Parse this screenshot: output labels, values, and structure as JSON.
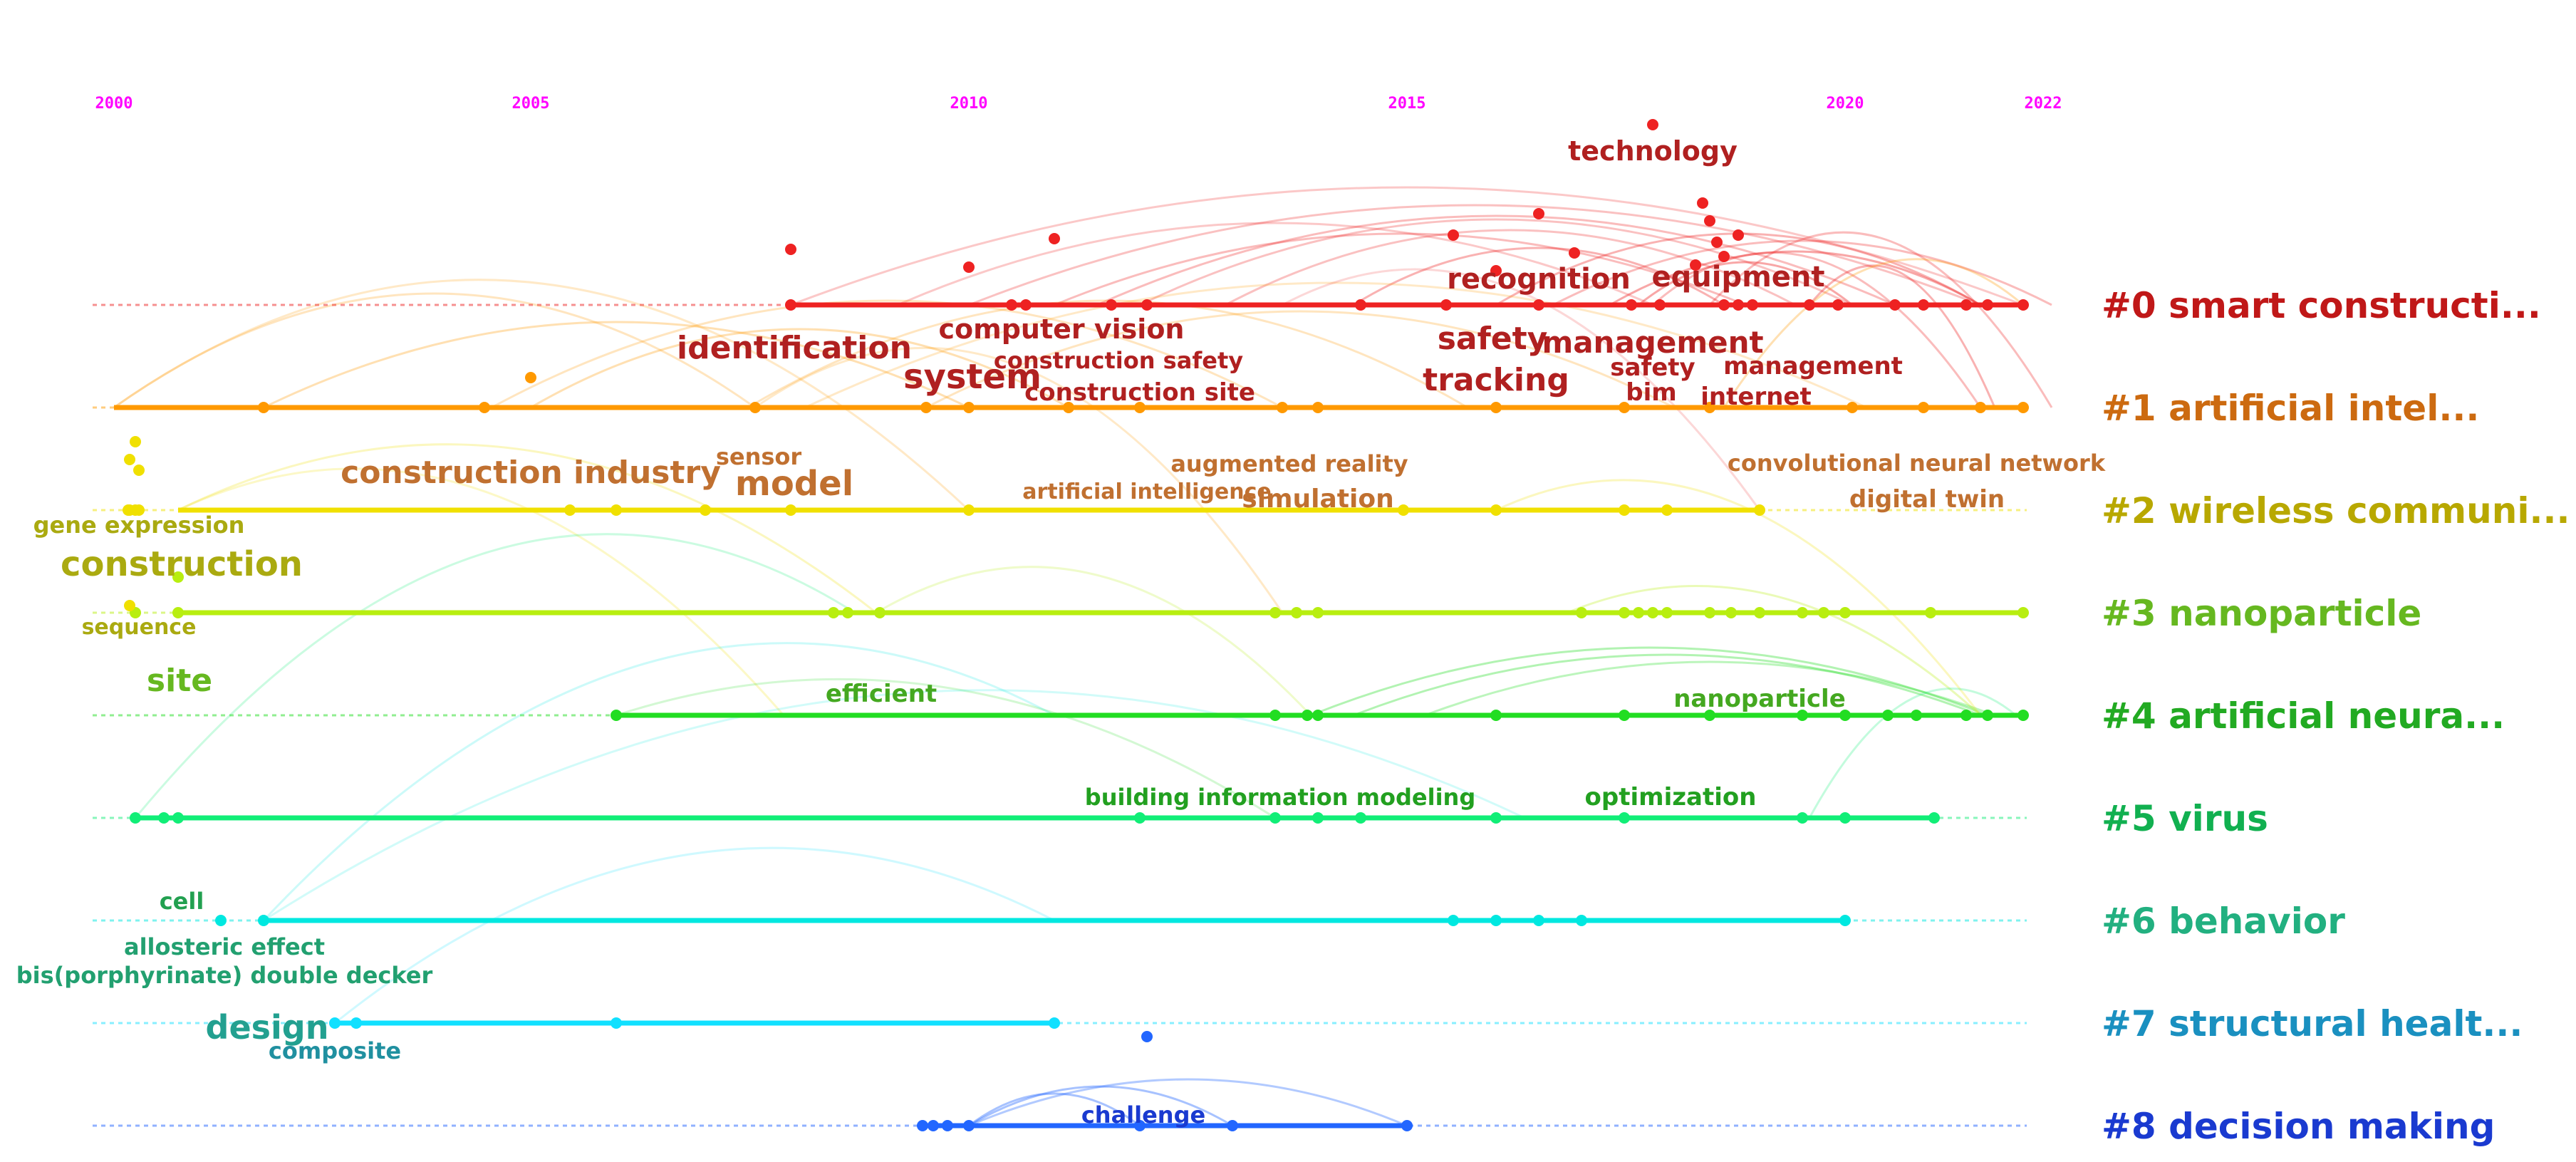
{
  "years": [
    "2000",
    "2005",
    "2010",
    "2015",
    "2020",
    "2022"
  ],
  "clusters": [
    {
      "label": "#0 smart constructi...",
      "color": "#ee2222",
      "text": "#c01818"
    },
    {
      "label": "#1 artificial intel...",
      "color": "#ff9900",
      "text": "#cc6a10"
    },
    {
      "label": "#2 wireless communi...",
      "color": "#f0e000",
      "text": "#b8a800"
    },
    {
      "label": "#3 nanoparticle",
      "color": "#b8ee10",
      "text": "#66b820"
    },
    {
      "label": "#4 artificial neura...",
      "color": "#22dd22",
      "text": "#22aa22"
    },
    {
      "label": "#5 virus",
      "color": "#11ee77",
      "text": "#11b050"
    },
    {
      "label": "#6 behavior",
      "color": "#00e8e0",
      "text": "#22b080"
    },
    {
      "label": "#7 structural healt...",
      "color": "#11e0ff",
      "text": "#1a90c0"
    },
    {
      "label": "#8 decision making",
      "color": "#2266ff",
      "text": "#1a3ad0"
    }
  ],
  "keywords": [
    {
      "text": "technology",
      "size": 38,
      "color": "#b02020"
    },
    {
      "text": "recognition",
      "size": 40,
      "color": "#b02020"
    },
    {
      "text": "equipment",
      "size": 40,
      "color": "#b02020"
    },
    {
      "text": "computer vision",
      "size": 38,
      "color": "#b02020"
    },
    {
      "text": "identification",
      "size": 44,
      "color": "#b02020"
    },
    {
      "text": "construction safety",
      "size": 32,
      "color": "#b02020"
    },
    {
      "text": "system",
      "size": 48,
      "color": "#b02020"
    },
    {
      "text": "construction site",
      "size": 34,
      "color": "#b02020"
    },
    {
      "text": "safety",
      "size": 44,
      "color": "#b02020"
    },
    {
      "text": "tracking",
      "size": 44,
      "color": "#b02020"
    },
    {
      "text": "management",
      "size": 42,
      "color": "#b02020"
    },
    {
      "text": "safety",
      "size": 34,
      "color": "#b02020"
    },
    {
      "text": "management",
      "size": 34,
      "color": "#b02020"
    },
    {
      "text": "bim",
      "size": 34,
      "color": "#b02020"
    },
    {
      "text": "internet",
      "size": 34,
      "color": "#b02020"
    },
    {
      "text": "sensor",
      "size": 32,
      "color": "#c07030"
    },
    {
      "text": "construction industry",
      "size": 44,
      "color": "#c07030"
    },
    {
      "text": "model",
      "size": 48,
      "color": "#c07030"
    },
    {
      "text": "augmented reality",
      "size": 32,
      "color": "#c07030"
    },
    {
      "text": "artificial intelligence",
      "size": 30,
      "color": "#c07030"
    },
    {
      "text": "simulation",
      "size": 36,
      "color": "#c07030"
    },
    {
      "text": "convolutional neural network",
      "size": 32,
      "color": "#c07030"
    },
    {
      "text": "digital twin",
      "size": 34,
      "color": "#c07030"
    },
    {
      "text": "gene expression",
      "size": 32,
      "color": "#aaaa10"
    },
    {
      "text": "construction",
      "size": 48,
      "color": "#aaaa10"
    },
    {
      "text": "sequence",
      "size": 30,
      "color": "#aaaa10"
    },
    {
      "text": "site",
      "size": 44,
      "color": "#66b820"
    },
    {
      "text": "efficient",
      "size": 34,
      "color": "#44a820"
    },
    {
      "text": "nanoparticle",
      "size": 34,
      "color": "#44a820"
    },
    {
      "text": "building information modeling",
      "size": 32,
      "color": "#22a020"
    },
    {
      "text": "optimization",
      "size": 34,
      "color": "#22a020"
    },
    {
      "text": "cell",
      "size": 32,
      "color": "#22a050"
    },
    {
      "text": "allosteric effect",
      "size": 32,
      "color": "#22a070"
    },
    {
      "text": "bis(porphyrinate) double decker",
      "size": 32,
      "color": "#22a070"
    },
    {
      "text": "design",
      "size": 46,
      "color": "#22a090"
    },
    {
      "text": "composite",
      "size": 32,
      "color": "#2090a0"
    },
    {
      "text": "challenge",
      "size": 32,
      "color": "#1a3ad0"
    }
  ]
}
